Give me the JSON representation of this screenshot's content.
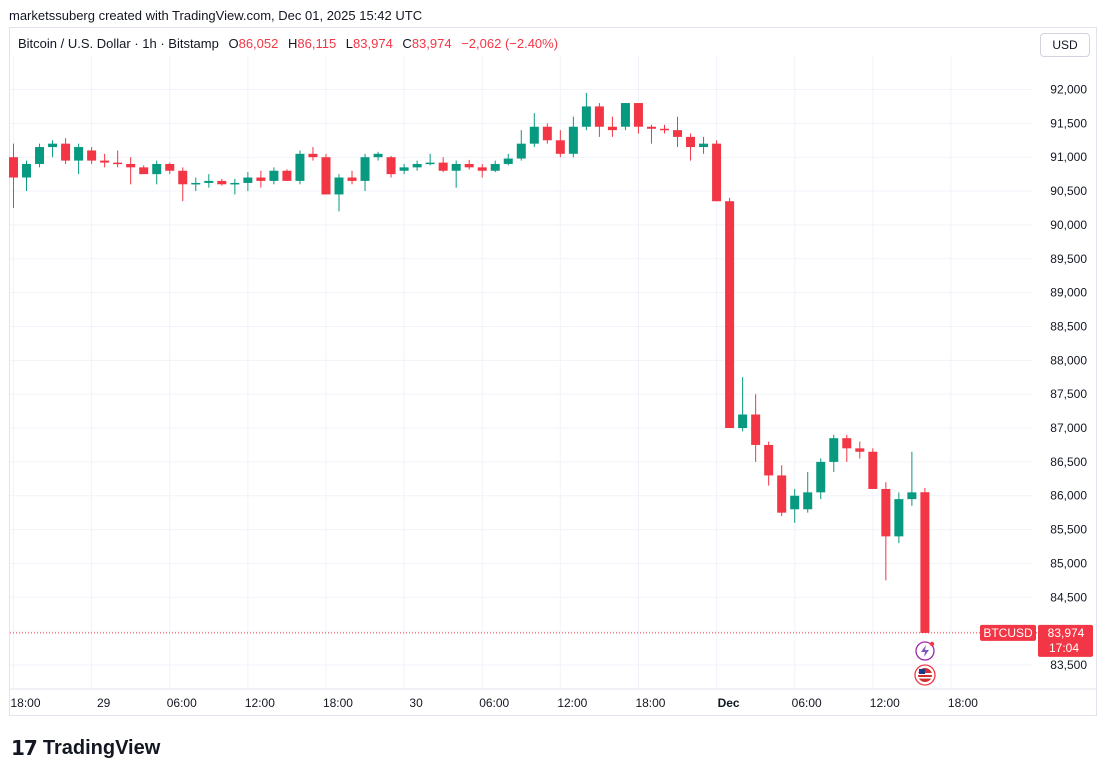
{
  "caption": "marketssuberg created with TradingView.com, Dec 01, 2025 15:42 UTC",
  "legend": {
    "symbol": "Bitcoin / U.S. Dollar · 1h · Bitstamp",
    "o_label": "O",
    "o_value": "86,052",
    "h_label": "H",
    "h_value": "86,115",
    "l_label": "L",
    "l_value": "83,974",
    "c_label": "C",
    "c_value": "83,974",
    "change": "−2,062 (−2.40%)"
  },
  "currency_button": "USD",
  "last_price": {
    "ticker": "BTCUSD",
    "price": "83,974",
    "countdown": "17:04"
  },
  "footer_logo": "TradingView",
  "colors": {
    "up": "#089981",
    "down": "#f23645",
    "grid": "#f0f3fa",
    "text": "#131722"
  },
  "icons": [
    "flash-event-icon",
    "us-flag-event-icon",
    "tradingview-logo-icon"
  ],
  "chart_data": {
    "type": "candlestick",
    "symbol": "BTCUSD",
    "interval": "1h",
    "ylim": [
      83200,
      92500
    ],
    "y_ticks": [
      "92,000",
      "91,500",
      "91,000",
      "90,500",
      "90,000",
      "89,500",
      "89,000",
      "88,500",
      "88,000",
      "87,500",
      "87,000",
      "86,500",
      "86,000",
      "85,500",
      "85,000",
      "84,500",
      "83,500"
    ],
    "x_ticks": [
      {
        "label": "18:00",
        "i": 0
      },
      {
        "label": "29",
        "i": 6
      },
      {
        "label": "06:00",
        "i": 12
      },
      {
        "label": "12:00",
        "i": 18
      },
      {
        "label": "18:00",
        "i": 24
      },
      {
        "label": "30",
        "i": 30
      },
      {
        "label": "06:00",
        "i": 36
      },
      {
        "label": "12:00",
        "i": 42
      },
      {
        "label": "18:00",
        "i": 48
      },
      {
        "label": "Dec",
        "i": 54,
        "bold": true
      },
      {
        "label": "06:00",
        "i": 60
      },
      {
        "label": "12:00",
        "i": 66
      },
      {
        "label": "18:00",
        "i": 72
      }
    ],
    "candles": [
      {
        "o": 91000,
        "h": 91200,
        "l": 90250,
        "c": 90700
      },
      {
        "o": 90700,
        "h": 90950,
        "l": 90500,
        "c": 90900
      },
      {
        "o": 90900,
        "h": 91200,
        "l": 90850,
        "c": 91150
      },
      {
        "o": 91150,
        "h": 91250,
        "l": 91000,
        "c": 91200
      },
      {
        "o": 91200,
        "h": 91280,
        "l": 90900,
        "c": 90950
      },
      {
        "o": 90950,
        "h": 91200,
        "l": 90750,
        "c": 91150
      },
      {
        "o": 91100,
        "h": 91150,
        "l": 90900,
        "c": 90950
      },
      {
        "o": 90950,
        "h": 91050,
        "l": 90850,
        "c": 90920
      },
      {
        "o": 90920,
        "h": 91100,
        "l": 90850,
        "c": 90900
      },
      {
        "o": 90900,
        "h": 91000,
        "l": 90600,
        "c": 90850
      },
      {
        "o": 90850,
        "h": 90880,
        "l": 90750,
        "c": 90750
      },
      {
        "o": 90750,
        "h": 90950,
        "l": 90600,
        "c": 90900
      },
      {
        "o": 90900,
        "h": 90920,
        "l": 90750,
        "c": 90800
      },
      {
        "o": 90800,
        "h": 90850,
        "l": 90350,
        "c": 90600
      },
      {
        "o": 90600,
        "h": 90700,
        "l": 90500,
        "c": 90620
      },
      {
        "o": 90620,
        "h": 90750,
        "l": 90550,
        "c": 90650
      },
      {
        "o": 90650,
        "h": 90680,
        "l": 90580,
        "c": 90600
      },
      {
        "o": 90600,
        "h": 90680,
        "l": 90450,
        "c": 90620
      },
      {
        "o": 90620,
        "h": 90780,
        "l": 90500,
        "c": 90700
      },
      {
        "o": 90700,
        "h": 90800,
        "l": 90550,
        "c": 90650
      },
      {
        "o": 90650,
        "h": 90850,
        "l": 90600,
        "c": 90800
      },
      {
        "o": 90800,
        "h": 90820,
        "l": 90650,
        "c": 90650
      },
      {
        "o": 90650,
        "h": 91100,
        "l": 90600,
        "c": 91050
      },
      {
        "o": 91050,
        "h": 91150,
        "l": 90950,
        "c": 91000
      },
      {
        "o": 91000,
        "h": 91050,
        "l": 90450,
        "c": 90450
      },
      {
        "o": 90450,
        "h": 90750,
        "l": 90200,
        "c": 90700
      },
      {
        "o": 90700,
        "h": 90800,
        "l": 90600,
        "c": 90650
      },
      {
        "o": 90650,
        "h": 91050,
        "l": 90500,
        "c": 91000
      },
      {
        "o": 91000,
        "h": 91080,
        "l": 90950,
        "c": 91050
      },
      {
        "o": 91000,
        "h": 91020,
        "l": 90700,
        "c": 90750
      },
      {
        "o": 90800,
        "h": 90900,
        "l": 90750,
        "c": 90850
      },
      {
        "o": 90850,
        "h": 90950,
        "l": 90800,
        "c": 90900
      },
      {
        "o": 90900,
        "h": 91050,
        "l": 90880,
        "c": 90920
      },
      {
        "o": 90920,
        "h": 91000,
        "l": 90780,
        "c": 90800
      },
      {
        "o": 90800,
        "h": 90950,
        "l": 90550,
        "c": 90900
      },
      {
        "o": 90900,
        "h": 90960,
        "l": 90820,
        "c": 90850
      },
      {
        "o": 90850,
        "h": 90900,
        "l": 90700,
        "c": 90800
      },
      {
        "o": 90800,
        "h": 90950,
        "l": 90780,
        "c": 90900
      },
      {
        "o": 90900,
        "h": 91050,
        "l": 90880,
        "c": 90980
      },
      {
        "o": 90980,
        "h": 91400,
        "l": 90950,
        "c": 91200
      },
      {
        "o": 91200,
        "h": 91650,
        "l": 91150,
        "c": 91450
      },
      {
        "o": 91450,
        "h": 91500,
        "l": 91200,
        "c": 91250
      },
      {
        "o": 91250,
        "h": 91400,
        "l": 91000,
        "c": 91050
      },
      {
        "o": 91050,
        "h": 91600,
        "l": 91000,
        "c": 91450
      },
      {
        "o": 91450,
        "h": 91950,
        "l": 91400,
        "c": 91750
      },
      {
        "o": 91750,
        "h": 91800,
        "l": 91300,
        "c": 91450
      },
      {
        "o": 91450,
        "h": 91600,
        "l": 91300,
        "c": 91400
      },
      {
        "o": 91450,
        "h": 91800,
        "l": 91400,
        "c": 91800
      },
      {
        "o": 91800,
        "h": 91800,
        "l": 91350,
        "c": 91450
      },
      {
        "o": 91450,
        "h": 91480,
        "l": 91200,
        "c": 91420
      },
      {
        "o": 91420,
        "h": 91480,
        "l": 91350,
        "c": 91400
      },
      {
        "o": 91400,
        "h": 91600,
        "l": 91150,
        "c": 91300
      },
      {
        "o": 91300,
        "h": 91350,
        "l": 90950,
        "c": 91150
      },
      {
        "o": 91150,
        "h": 91300,
        "l": 91050,
        "c": 91200
      },
      {
        "o": 91200,
        "h": 91250,
        "l": 90350,
        "c": 90350
      },
      {
        "o": 90350,
        "h": 90400,
        "l": 87000,
        "c": 87000
      },
      {
        "o": 87000,
        "h": 87750,
        "l": 86950,
        "c": 87200
      },
      {
        "o": 87200,
        "h": 87500,
        "l": 86500,
        "c": 86750
      },
      {
        "o": 86750,
        "h": 86800,
        "l": 86150,
        "c": 86300
      },
      {
        "o": 86300,
        "h": 86450,
        "l": 85700,
        "c": 85750
      },
      {
        "o": 85800,
        "h": 86100,
        "l": 85600,
        "c": 86000
      },
      {
        "o": 85800,
        "h": 86350,
        "l": 85750,
        "c": 86050
      },
      {
        "o": 86050,
        "h": 86550,
        "l": 85950,
        "c": 86500
      },
      {
        "o": 86500,
        "h": 86900,
        "l": 86350,
        "c": 86850
      },
      {
        "o": 86850,
        "h": 86900,
        "l": 86500,
        "c": 86700
      },
      {
        "o": 86700,
        "h": 86800,
        "l": 86550,
        "c": 86650
      },
      {
        "o": 86650,
        "h": 86700,
        "l": 86100,
        "c": 86100
      },
      {
        "o": 86100,
        "h": 86200,
        "l": 84750,
        "c": 85400
      },
      {
        "o": 85400,
        "h": 86050,
        "l": 85300,
        "c": 85950
      },
      {
        "o": 85950,
        "h": 86650,
        "l": 85850,
        "c": 86050
      },
      {
        "o": 86052,
        "h": 86115,
        "l": 83974,
        "c": 83974
      }
    ],
    "last_price": 83974
  }
}
